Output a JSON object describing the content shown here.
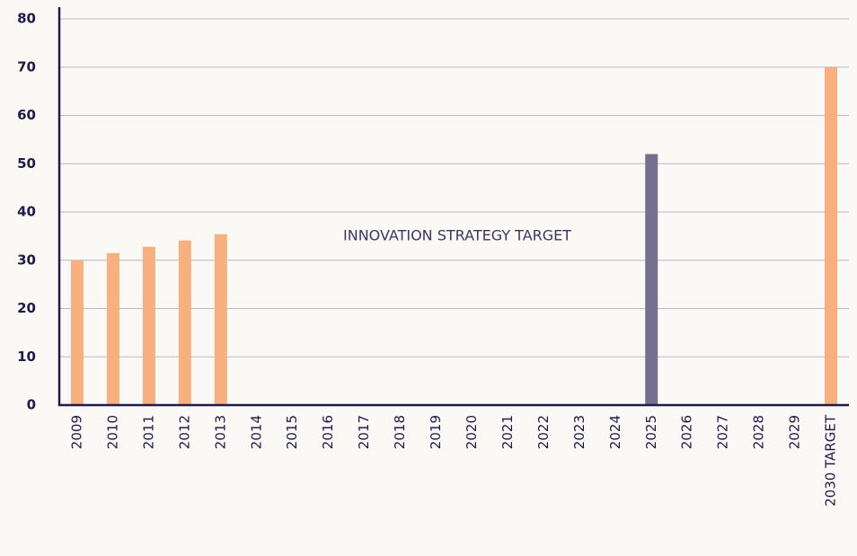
{
  "chart_data": {
    "type": "bar",
    "annotation": "INNOVATION STRATEGY TARGET",
    "categories": [
      "2009",
      "2010",
      "2011",
      "2012",
      "2013",
      "2014",
      "2015",
      "2016",
      "2017",
      "2018",
      "2019",
      "2020",
      "2021",
      "2022",
      "2023",
      "2024",
      "2025",
      "2026",
      "2027",
      "2028",
      "2029",
      "2030 TARGET"
    ],
    "values": [
      30,
      31.5,
      32.8,
      34.1,
      35.4,
      null,
      null,
      null,
      null,
      null,
      null,
      null,
      null,
      null,
      null,
      null,
      52,
      null,
      null,
      null,
      null,
      70
    ],
    "colors": [
      "#f7b07e",
      "#f7b07e",
      "#f7b07e",
      "#f7b07e",
      "#f7b07e",
      null,
      null,
      null,
      null,
      null,
      null,
      null,
      null,
      null,
      null,
      null,
      "#76708f",
      null,
      null,
      null,
      null,
      "#f7b07e"
    ],
    "ylim": [
      0,
      80
    ],
    "yticks": [
      0,
      10,
      20,
      30,
      40,
      50,
      60,
      70,
      80
    ],
    "grid": true
  }
}
